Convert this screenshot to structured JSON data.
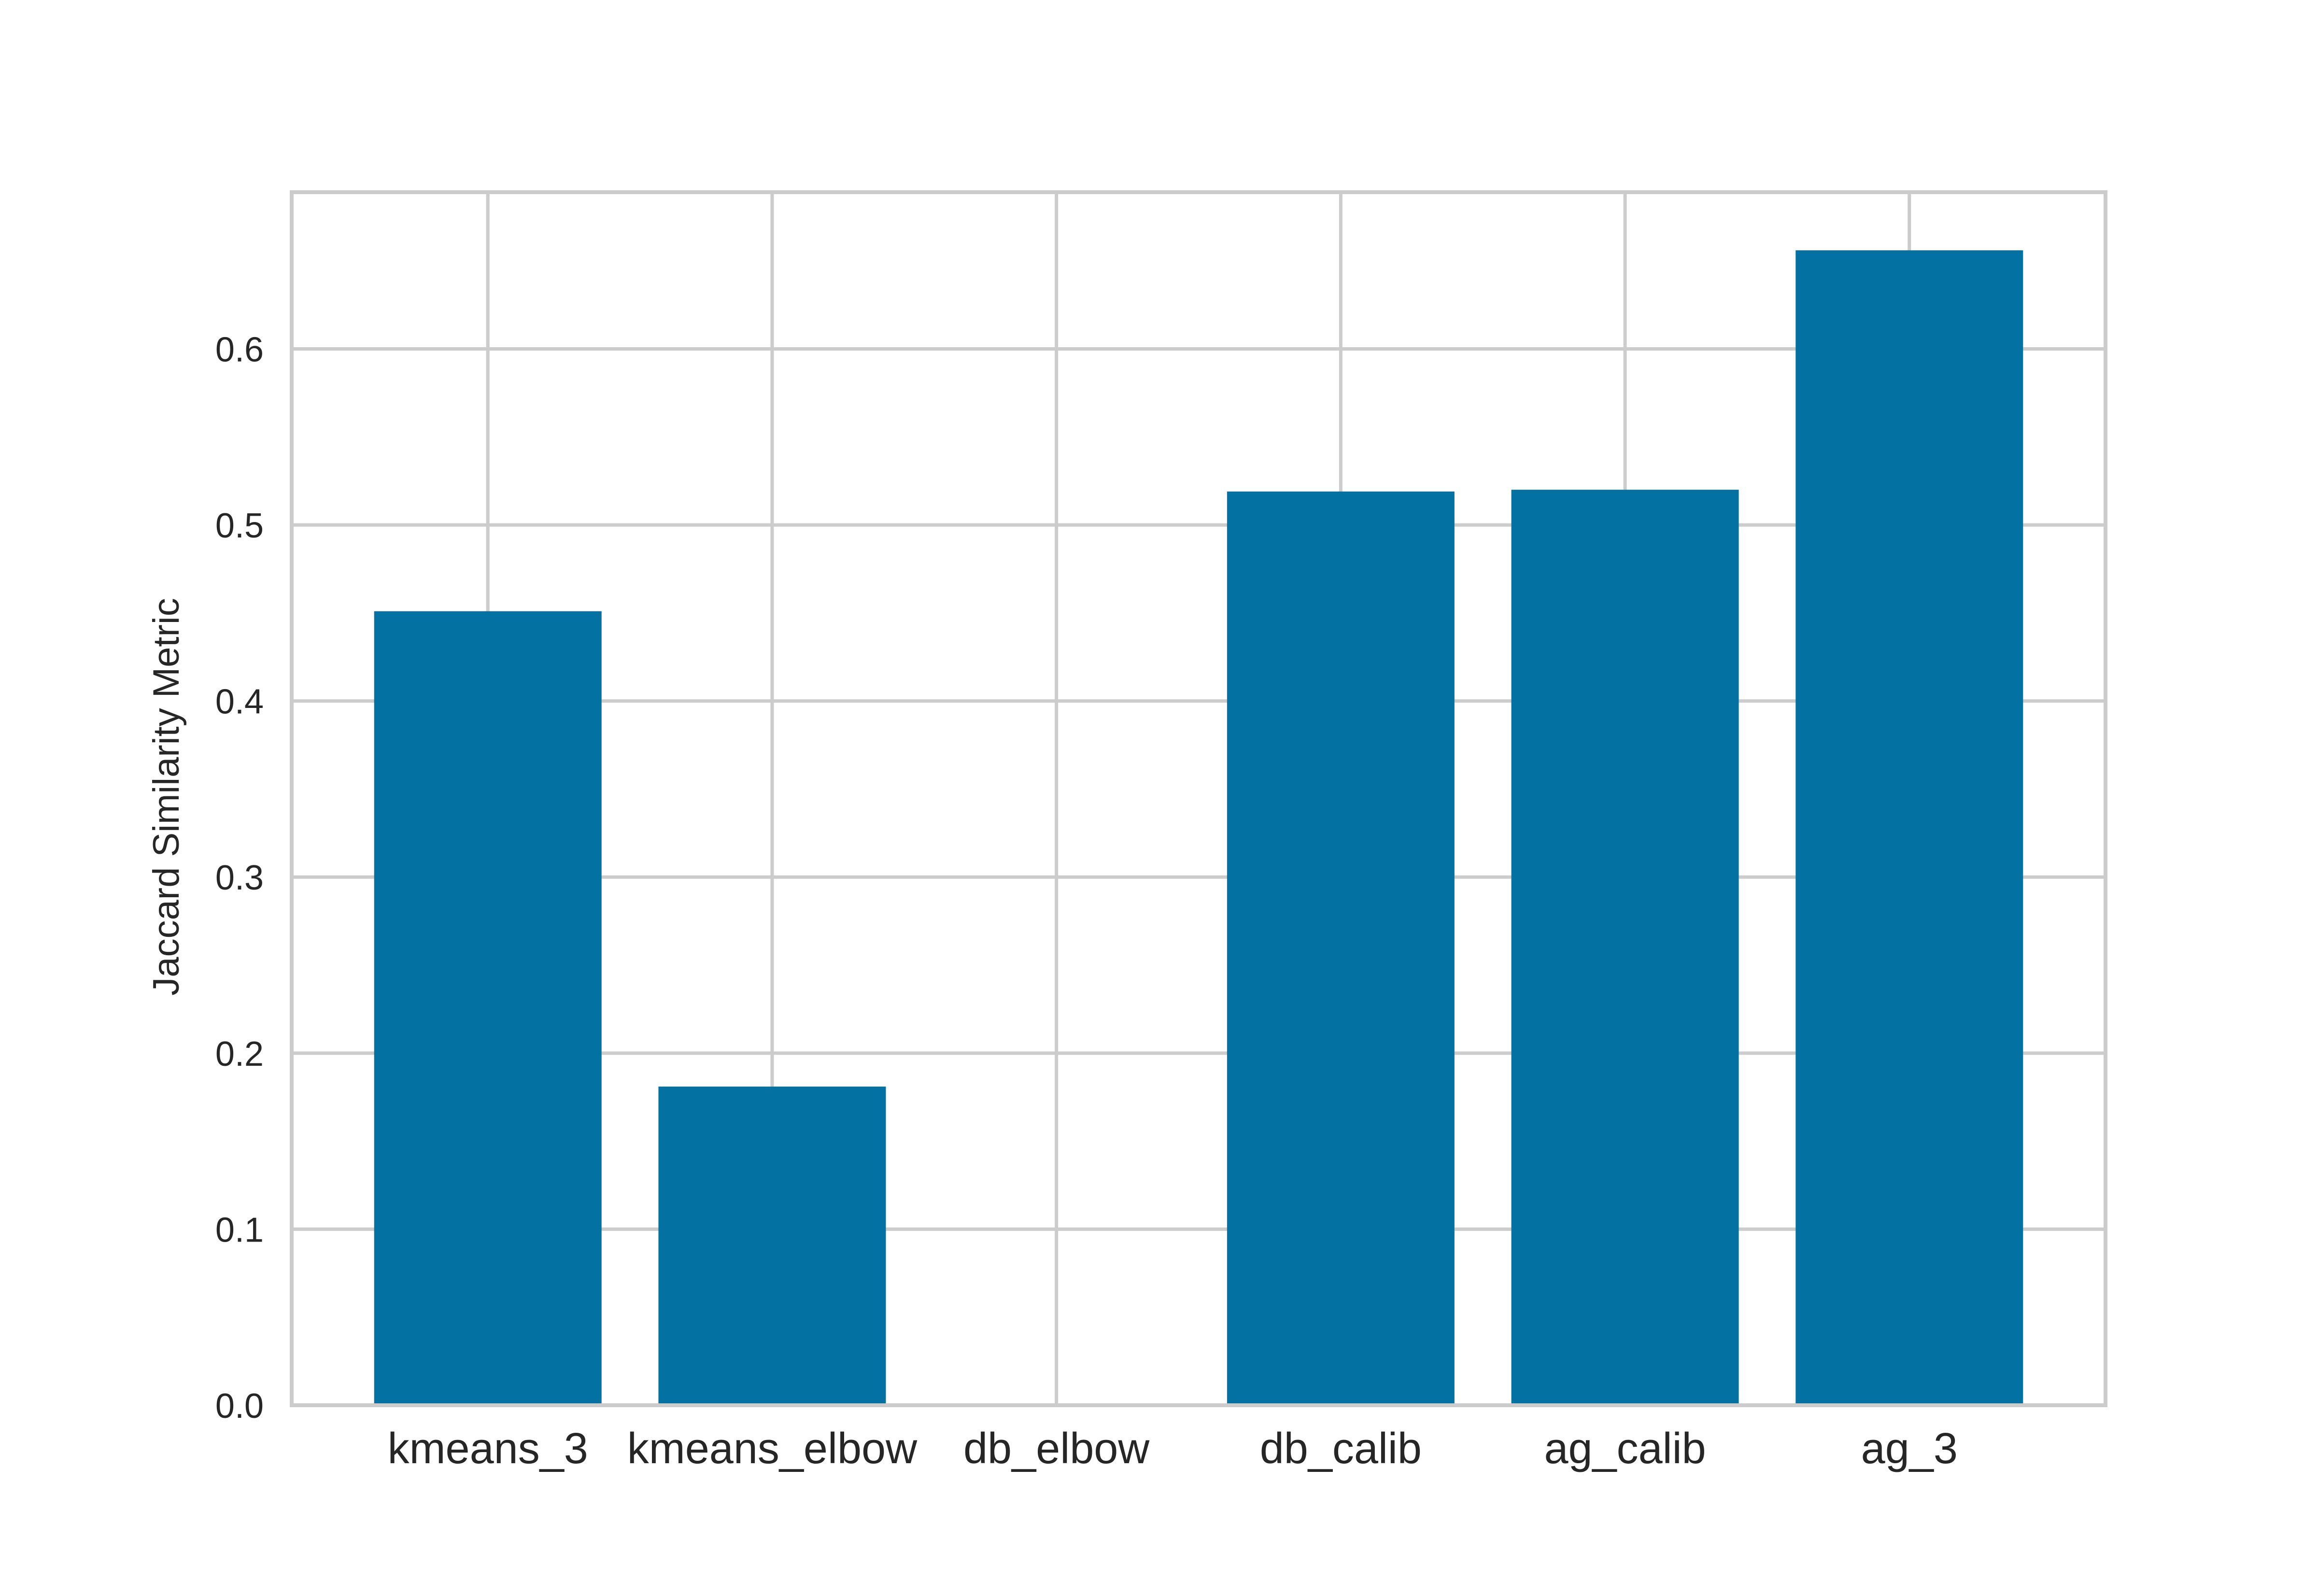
{
  "chart_data": {
    "type": "bar",
    "title": "",
    "xlabel": "",
    "ylabel": "Jaccard Similarity Metric",
    "categories": [
      "kmeans_3",
      "kmeans_elbow",
      "db_elbow",
      "db_calib",
      "ag_calib",
      "ag_3"
    ],
    "values": [
      0.451,
      0.181,
      0.0,
      0.519,
      0.52,
      0.656
    ],
    "ylim": [
      0,
      0.689
    ],
    "yticks": [
      0.0,
      0.1,
      0.2,
      0.3,
      0.4,
      0.5,
      0.6
    ],
    "ytick_labels": [
      "0.0",
      "0.1",
      "0.2",
      "0.3",
      "0.4",
      "0.5",
      "0.6"
    ],
    "grid": true,
    "bar_color": "#0372a3",
    "grid_color": "#cccccc",
    "spine_color": "#cccccc"
  }
}
